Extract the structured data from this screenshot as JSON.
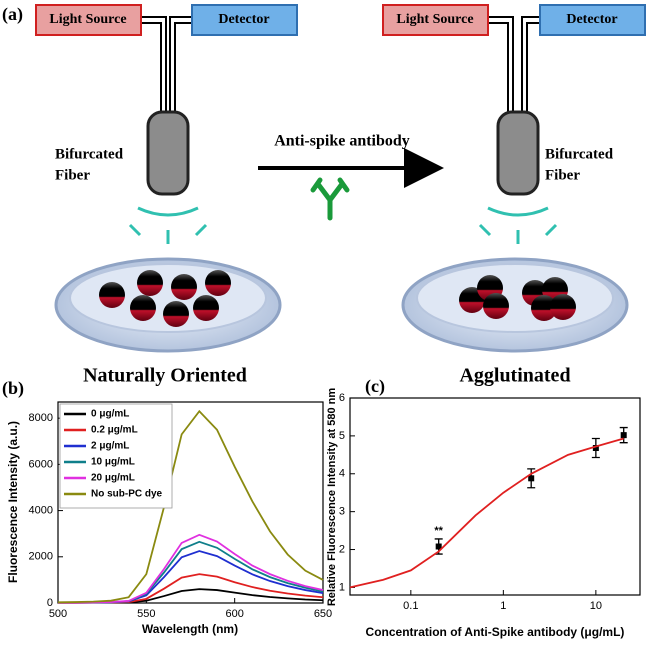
{
  "diagram": {
    "panel_label": "(a)",
    "left": {
      "light_source": "Light Source",
      "detector": "Detector",
      "fiber_label": [
        "Bifurcated",
        "Fiber"
      ],
      "caption": "Naturally Oriented"
    },
    "right": {
      "light_source": "Light Source",
      "detector": "Detector",
      "fiber_label": [
        "Bifurcated",
        "Fiber"
      ],
      "caption": "Agglutinated"
    },
    "arrow_label": "Anti-spike antibody"
  },
  "chart_data": [
    {
      "type": "line",
      "panel_label": "(b)",
      "x_label": "Wavelength (nm)",
      "y_label": "Fluorescence Intensity (a.u.)",
      "x": [
        500,
        510,
        520,
        530,
        540,
        550,
        560,
        570,
        580,
        590,
        600,
        610,
        620,
        630,
        640,
        650
      ],
      "series": [
        {
          "name": "0 μg/mL",
          "color": "#000000",
          "values": [
            10,
            10,
            15,
            20,
            30,
            100,
            300,
            520,
            600,
            560,
            450,
            340,
            260,
            200,
            150,
            120
          ]
        },
        {
          "name": "0.2 μg/mL",
          "color": "#e02020",
          "values": [
            10,
            12,
            15,
            25,
            40,
            180,
            620,
            1100,
            1250,
            1140,
            900,
            690,
            530,
            410,
            320,
            250
          ]
        },
        {
          "name": "2 μg/mL",
          "color": "#1f2fd0",
          "values": [
            15,
            15,
            20,
            30,
            70,
            330,
            1120,
            1980,
            2250,
            2030,
            1620,
            1240,
            950,
            730,
            560,
            430
          ]
        },
        {
          "name": "10 μg/mL",
          "color": "#0f7f8a",
          "values": [
            15,
            15,
            20,
            35,
            80,
            400,
            1320,
            2330,
            2650,
            2390,
            1910,
            1460,
            1120,
            860,
            660,
            500
          ]
        },
        {
          "name": "20 μg/mL",
          "color": "#e030e0",
          "values": [
            15,
            15,
            25,
            40,
            90,
            440,
            1470,
            2600,
            2950,
            2660,
            2120,
            1620,
            1250,
            960,
            730,
            560
          ]
        },
        {
          "name": "No sub-PC dye",
          "color": "#8a8a10",
          "values": [
            30,
            40,
            60,
            100,
            250,
            1250,
            4150,
            7300,
            8300,
            7500,
            5900,
            4400,
            3100,
            2100,
            1400,
            1000
          ]
        }
      ],
      "xlim": [
        500,
        650
      ],
      "xticks": [
        500,
        550,
        600,
        650
      ],
      "ylim": [
        0,
        8700
      ],
      "yticks": [
        0,
        2000,
        4000,
        6000,
        8000
      ],
      "legend": "upper left"
    },
    {
      "type": "scatter",
      "panel_label": "(c)",
      "x_label": "Concentration of Anti-Spike antibody (μg/mL)",
      "y_label": "Relative Fluorescence Intensity at 580 nm",
      "x_log": true,
      "series": [
        {
          "type": "scatter",
          "color": "#000000",
          "x": [
            0.2,
            2,
            10,
            20
          ],
          "values": [
            2.08,
            3.88,
            4.68,
            5.02
          ],
          "errors": [
            0.2,
            0.25,
            0.25,
            0.2
          ],
          "point_labels": [
            "**",
            null,
            null,
            null
          ]
        },
        {
          "type": "line",
          "color": "#e02020",
          "x": [
            0.022,
            0.05,
            0.1,
            0.2,
            0.5,
            1,
            2,
            5,
            10,
            20
          ],
          "values": [
            1.0,
            1.2,
            1.45,
            1.95,
            2.9,
            3.5,
            4.0,
            4.5,
            4.72,
            4.93
          ]
        }
      ],
      "xlim": [
        0.022,
        30
      ],
      "xticks": [
        0.1,
        1,
        10
      ],
      "ylim": [
        0.8,
        6
      ],
      "yticks": [
        1,
        2,
        3,
        4,
        5,
        6
      ]
    }
  ]
}
